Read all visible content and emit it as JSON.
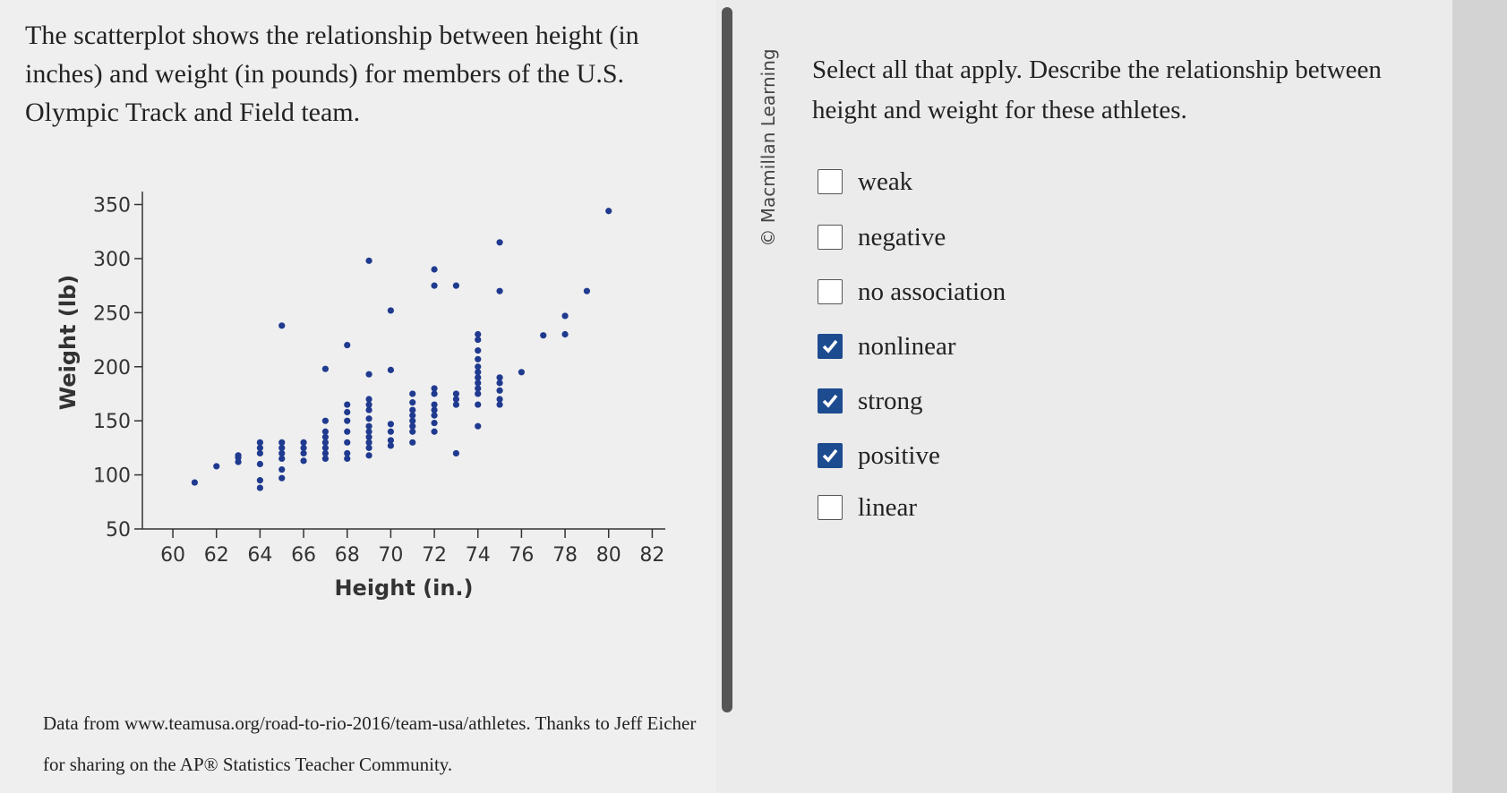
{
  "question": "The scatterplot shows the relationship between height (in inches) and weight (in pounds) for members of the U.S. Olympic Track and Field team.",
  "chart_data": {
    "type": "scatter",
    "x_label": "Height (in.)",
    "y_label": "Weight (lb)",
    "color": "#1f3a8f",
    "x": [
      61,
      62,
      63,
      63,
      63,
      64,
      64,
      64,
      64,
      64,
      64,
      65,
      65,
      65,
      65,
      65,
      65,
      65,
      66,
      66,
      66,
      66,
      67,
      67,
      67,
      67,
      67,
      67,
      67,
      67,
      68,
      68,
      68,
      68,
      68,
      68,
      68,
      68,
      69,
      69,
      69,
      69,
      69,
      69,
      69,
      69,
      69,
      69,
      69,
      69,
      70,
      70,
      70,
      70,
      70,
      70,
      71,
      71,
      71,
      71,
      71,
      71,
      71,
      71,
      72,
      72,
      72,
      72,
      72,
      72,
      72,
      72,
      72,
      73,
      73,
      73,
      73,
      73,
      74,
      74,
      74,
      74,
      74,
      74,
      74,
      74,
      74,
      74,
      74,
      74,
      75,
      75,
      75,
      75,
      75,
      75,
      75,
      76,
      77,
      78,
      78,
      79,
      80
    ],
    "values": [
      93,
      108,
      112,
      116,
      118,
      88,
      95,
      110,
      120,
      125,
      130,
      97,
      105,
      115,
      120,
      125,
      130,
      238,
      113,
      120,
      125,
      130,
      115,
      120,
      125,
      130,
      135,
      140,
      150,
      198,
      115,
      120,
      130,
      140,
      150,
      158,
      165,
      220,
      118,
      125,
      130,
      135,
      140,
      145,
      152,
      160,
      165,
      170,
      193,
      298,
      127,
      132,
      140,
      147,
      197,
      252,
      130,
      140,
      145,
      150,
      155,
      160,
      167,
      175,
      140,
      148,
      155,
      160,
      165,
      175,
      180,
      275,
      290,
      120,
      165,
      170,
      175,
      275,
      145,
      165,
      175,
      180,
      185,
      190,
      195,
      200,
      207,
      215,
      225,
      230,
      165,
      170,
      178,
      185,
      190,
      270,
      315,
      195,
      229,
      230,
      247,
      270,
      344
    ],
    "xlim": [
      58.6,
      82.6
    ],
    "ylim": [
      50,
      362
    ],
    "xticks": [
      60,
      62,
      64,
      66,
      68,
      70,
      72,
      74,
      76,
      78,
      80,
      82
    ],
    "yticks": [
      50,
      100,
      150,
      200,
      250,
      300,
      350
    ]
  },
  "source": "Data from www.teamusa.org/road-to-rio-2016/team-usa/athletes. Thanks to Jeff Eicher for sharing on the AP® Statistics Teacher Community.",
  "credit": "© Macmillan Learning",
  "prompt": "Select all that apply. Describe the relationship between height and weight for these athletes.",
  "options": [
    {
      "label": "weak",
      "checked": false
    },
    {
      "label": "negative",
      "checked": false
    },
    {
      "label": "no association",
      "checked": false
    },
    {
      "label": "nonlinear",
      "checked": true
    },
    {
      "label": "strong",
      "checked": true
    },
    {
      "label": "positive",
      "checked": true
    },
    {
      "label": "linear",
      "checked": false
    }
  ]
}
